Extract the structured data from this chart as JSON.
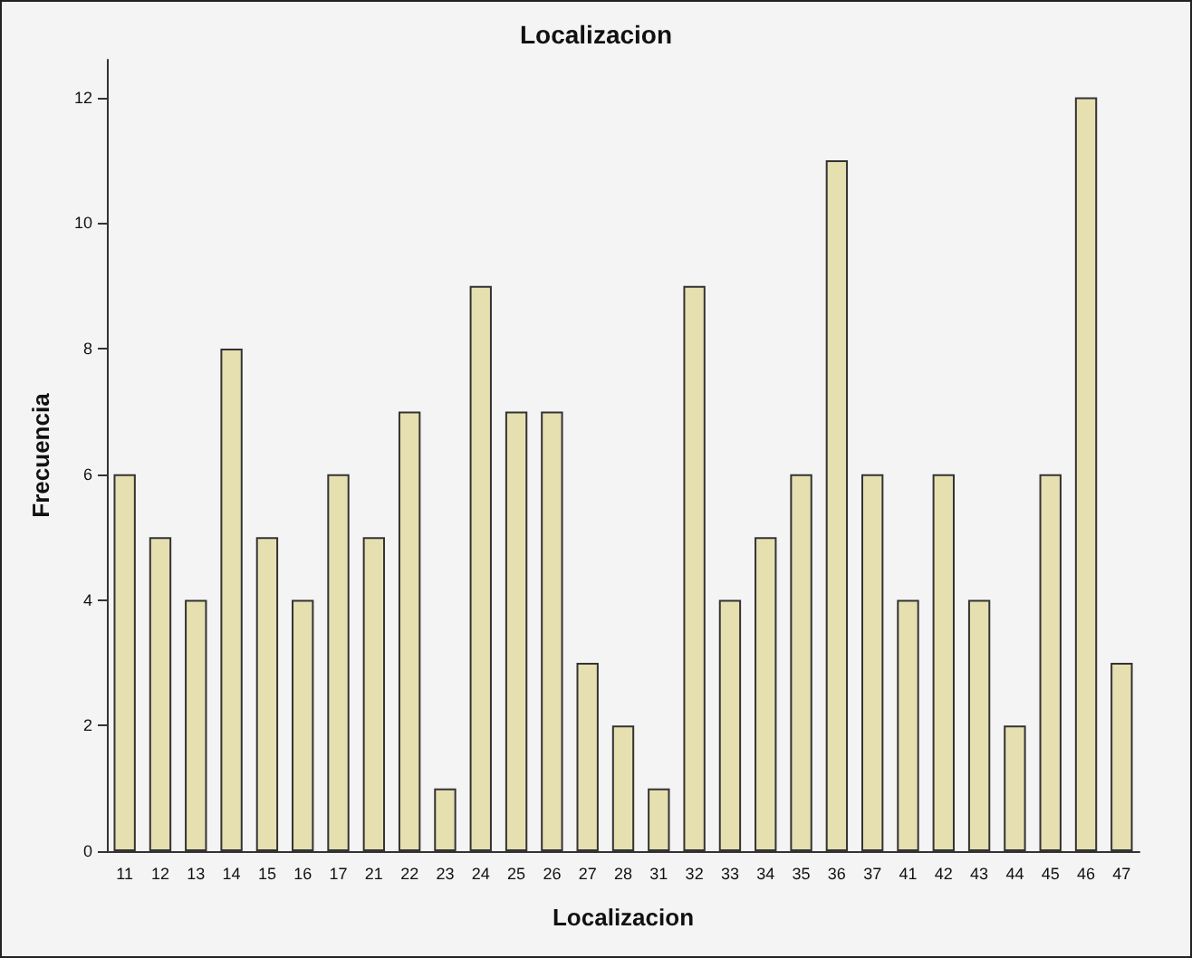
{
  "chart_data": {
    "type": "bar",
    "title": "Localizacion",
    "xlabel": "Localizacion",
    "ylabel": "Frecuencia",
    "categories": [
      "11",
      "12",
      "13",
      "14",
      "15",
      "16",
      "17",
      "21",
      "22",
      "23",
      "24",
      "25",
      "26",
      "27",
      "28",
      "31",
      "32",
      "33",
      "34",
      "35",
      "36",
      "37",
      "41",
      "42",
      "43",
      "44",
      "45",
      "46",
      "47"
    ],
    "values": [
      6,
      5,
      4,
      8,
      5,
      4,
      6,
      5,
      7,
      1,
      9,
      7,
      7,
      3,
      2,
      1,
      9,
      4,
      5,
      6,
      11,
      6,
      4,
      6,
      4,
      2,
      6,
      12,
      3
    ],
    "color": "#e6dfb0",
    "ylim": [
      0,
      12.6
    ],
    "yticks": [
      0,
      2,
      4,
      6,
      8,
      10,
      12
    ],
    "grid": false
  }
}
